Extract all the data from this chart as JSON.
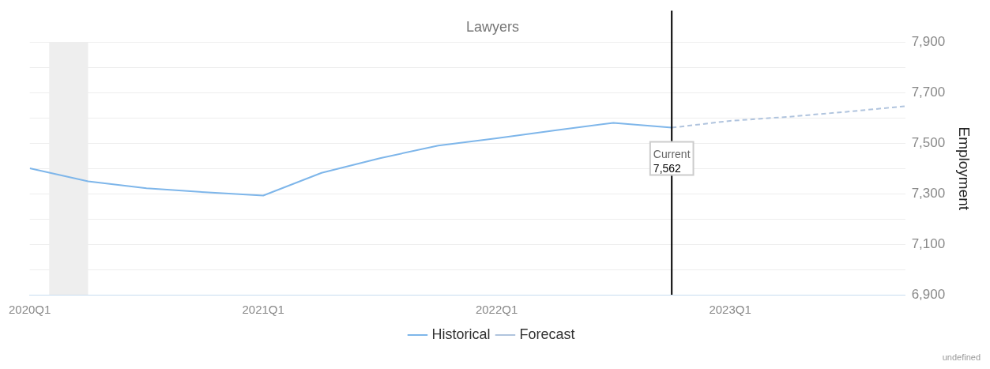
{
  "chart_data": {
    "type": "line",
    "title": "Lawyers",
    "ylabel": "Employment",
    "x": [
      "2020-01",
      "2020-04",
      "2020-07",
      "2020-10",
      "2021-01",
      "2021-04",
      "2021-07",
      "2021-10",
      "2022-01",
      "2022-04",
      "2022-07",
      "2022-10"
    ],
    "series": [
      {
        "name": "Historical",
        "color": "#7eb6ea",
        "line_style": "solid",
        "values": [
          7401,
          7349,
          7322,
          7306,
          7293,
          7383,
          7441,
          7491,
          7520,
          7551,
          7581,
          7562
        ]
      },
      {
        "name": "Forecast",
        "color": "#b0c4de",
        "line_style": "dashed",
        "x": [
          "2022-10",
          "2023-01",
          "2023-04",
          "2023-07",
          "2023-10"
        ],
        "values": [
          7562,
          7589,
          7605,
          7625,
          7647
        ]
      }
    ],
    "xlim": [
      "2020-01",
      "2023-10"
    ],
    "xticks": [
      {
        "value": "2020-01",
        "label": "2020Q1"
      },
      {
        "value": "2021-01",
        "label": "2021Q1"
      },
      {
        "value": "2022-01",
        "label": "2022Q1"
      },
      {
        "value": "2023-01",
        "label": "2023Q1"
      }
    ],
    "ylim": [
      6900,
      7900
    ],
    "yticks": [
      "6,900",
      {
        "value": 7000,
        "label": null
      },
      {
        "value": 7100,
        "label": "7,100"
      },
      {
        "value": 7200,
        "label": null
      },
      {
        "value": 7300,
        "label": "7,300"
      },
      {
        "value": 7400,
        "label": null
      },
      {
        "value": 7500,
        "label": "7,500"
      },
      {
        "value": 7600,
        "label": null
      },
      {
        "value": 7700,
        "label": "7,700"
      },
      {
        "value": 7800,
        "label": null
      },
      {
        "value": 7900,
        "label": "7,900"
      }
    ],
    "bands": [
      {
        "axis": "x",
        "from": "2020-02",
        "to": "2020-04",
        "color": "#eeeeee"
      }
    ],
    "ref_lines": [
      {
        "axis": "x",
        "value": "2022-10",
        "color": "#000000"
      }
    ],
    "annotations": [
      {
        "text": "Current\n7,562",
        "x": "2022-10",
        "y": 7562
      },
      "undefined"
    ],
    "grid": "y",
    "legend": "bottom",
    "marker": "none"
  }
}
